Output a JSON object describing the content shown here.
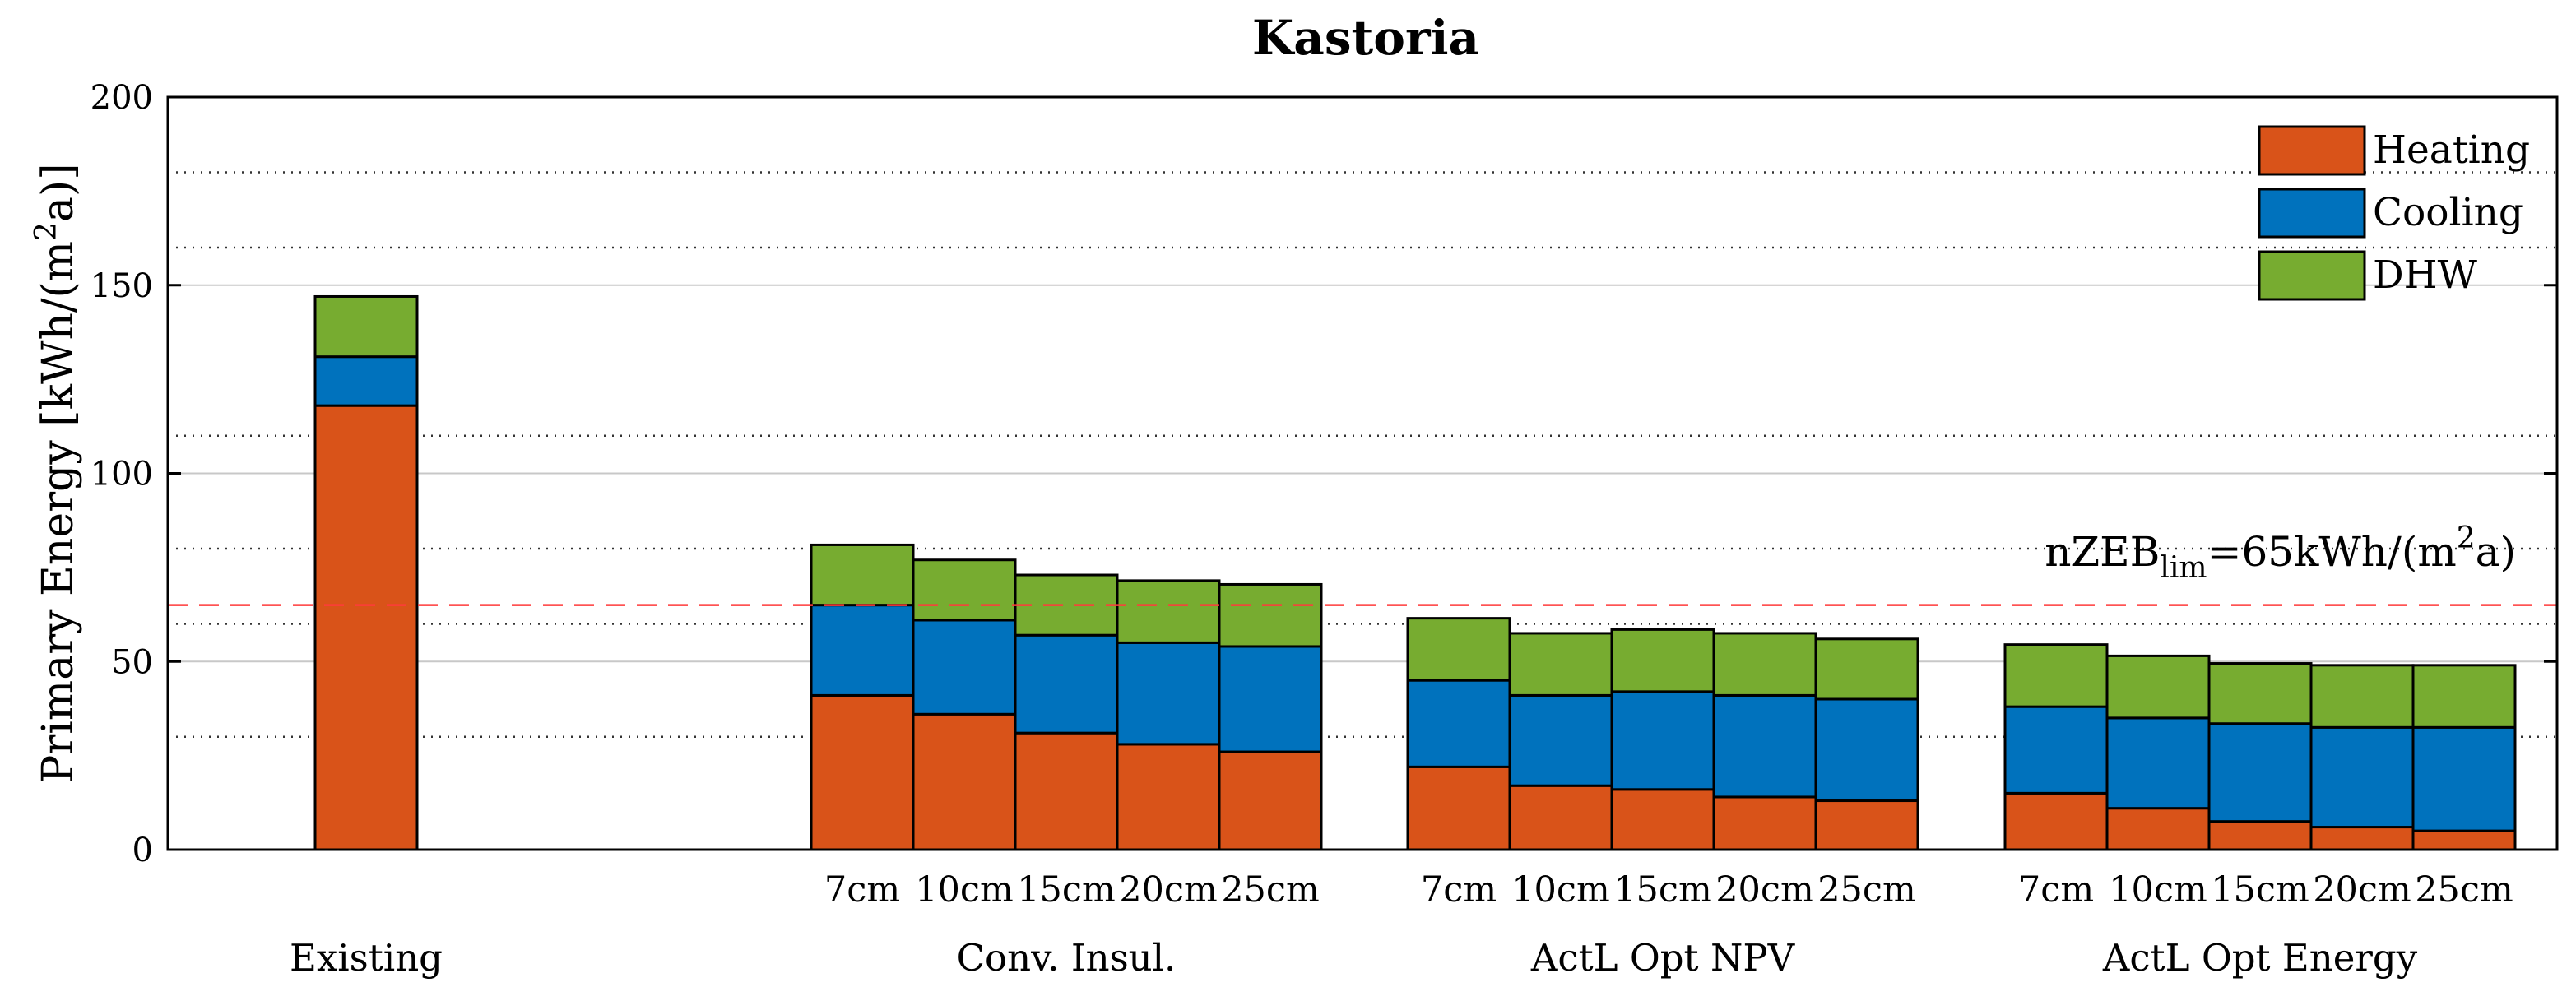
{
  "chart_data": {
    "type": "bar",
    "stacked": true,
    "title": "Kastoria",
    "ylabel": "Primary Energy [kWh/(m²a)]",
    "ylabel_parts": {
      "main": "Primary Energy [kWh/(m",
      "sup": "2",
      "tail": "a)]"
    },
    "ylim": [
      0,
      200
    ],
    "yticks": [
      0,
      50,
      100,
      150,
      200
    ],
    "grid_lines": [
      30,
      60,
      80,
      110,
      160,
      180
    ],
    "reference_line": {
      "value": 65,
      "color": "#ff3b3b",
      "label": "nZEBlim=65kWh/(m2a)",
      "label_parts": {
        "base": "nZEB",
        "sub": "lim",
        "mid": "=65kWh/(m",
        "sup": "2",
        "tail": "a)"
      }
    },
    "groups": [
      {
        "name": "Existing",
        "categories": [
          ""
        ]
      },
      {
        "name": "Conv. Insul.",
        "categories": [
          "7cm",
          "10cm",
          "15cm",
          "20cm",
          "25cm"
        ]
      },
      {
        "name": "ActL Opt NPV",
        "categories": [
          "7cm",
          "10cm",
          "15cm",
          "20cm",
          "25cm"
        ]
      },
      {
        "name": "ActL Opt Energy",
        "categories": [
          "7cm",
          "10cm",
          "15cm",
          "20cm",
          "25cm"
        ]
      }
    ],
    "series": [
      {
        "name": "Heating",
        "color": "#d95319",
        "values": [
          118,
          41,
          36,
          31,
          28,
          26,
          22,
          17,
          16,
          14,
          13,
          15,
          11,
          7.5,
          6,
          5
        ]
      },
      {
        "name": "Cooling",
        "color": "#0072bd",
        "values": [
          13,
          24,
          25,
          26,
          27,
          28,
          23,
          24,
          26,
          27,
          27,
          23,
          24,
          26,
          26.5,
          27.5
        ]
      },
      {
        "name": "DHW",
        "color": "#77ac30",
        "values": [
          16,
          16,
          16,
          16,
          16.5,
          16.5,
          16.5,
          16.5,
          16.5,
          16.5,
          16,
          16.5,
          16.5,
          16,
          16.5,
          16.5
        ]
      }
    ],
    "legend": {
      "position": "top-right",
      "entries": [
        "Heating",
        "Cooling",
        "DHW"
      ]
    }
  }
}
